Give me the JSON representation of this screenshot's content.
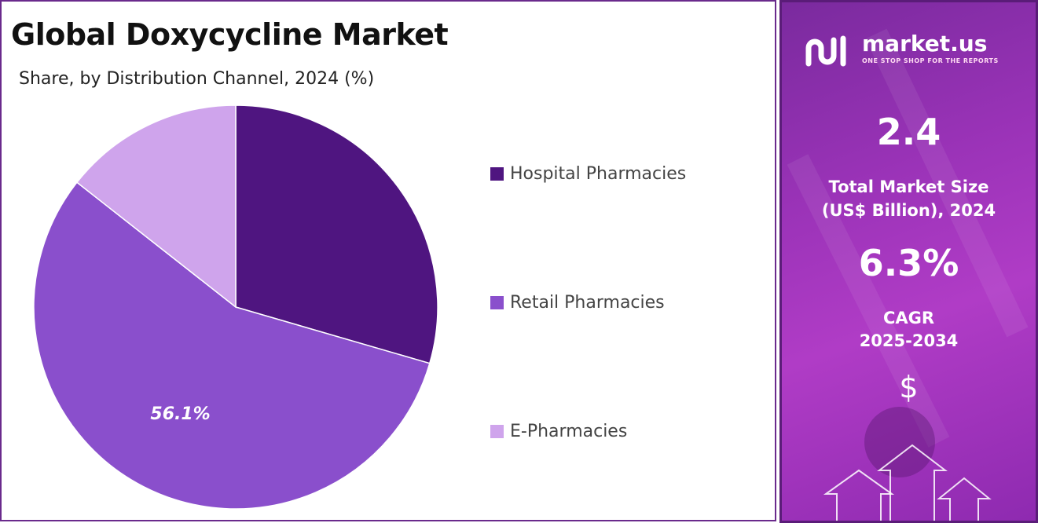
{
  "title": "Global Doxycycline Market",
  "subtitle": "Share, by Distribution Channel, 2024 (%)",
  "chart_data": {
    "type": "pie",
    "title": "Global Doxycycline Market",
    "subtitle": "Share, by Distribution Channel, 2024 (%)",
    "categories": [
      "Hospital Pharmacies",
      "Retail Pharmacies",
      "E-Pharmacies"
    ],
    "values": [
      29.5,
      56.1,
      14.4
    ],
    "colors": [
      "#4f1580",
      "#8a4fcc",
      "#cfa4ec"
    ],
    "data_labels": [
      "",
      "56.1%",
      ""
    ],
    "legend_position": "right"
  },
  "sidebar": {
    "brand_name": "market.us",
    "brand_tagline": "ONE STOP SHOP FOR THE REPORTS",
    "market_size_value": "2.4",
    "market_size_label_line1": "Total Market Size",
    "market_size_label_line2": "(US$ Billion), 2024",
    "cagr_value": "6.3%",
    "cagr_label_line1": "CAGR",
    "cagr_label_line2": "2025-2034",
    "currency_symbol": "$"
  }
}
